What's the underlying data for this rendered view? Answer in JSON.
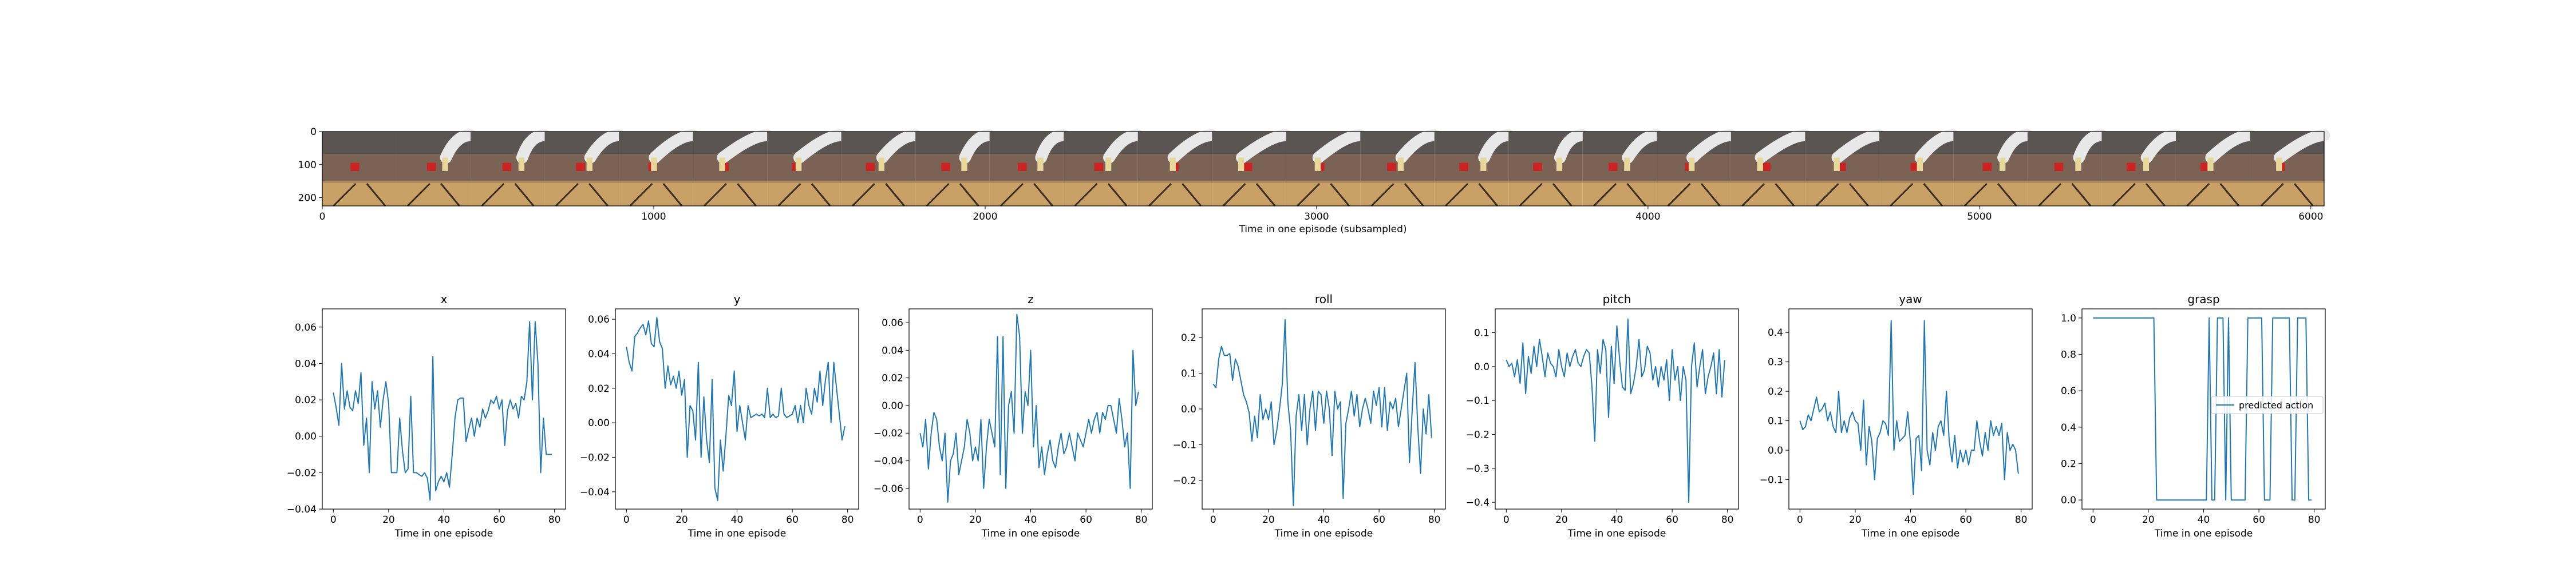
{
  "filmstrip": {
    "xlabel": "Time in one episode (subsampled)",
    "x_ticks": [
      "0",
      "1000",
      "2000",
      "3000",
      "4000",
      "5000",
      "6000"
    ],
    "y_ticks": [
      "0",
      "100",
      "200"
    ],
    "frame_count": 27,
    "colors": {
      "wall": "#5a5452",
      "table": "#7a6354",
      "table_edge": "#b08a5c",
      "floor": "#c9a066",
      "robot": "#e8e8e8",
      "object": "#cc2222",
      "gripper": "#e6d89a"
    }
  },
  "panels": {
    "xlabel": "Time in one episode",
    "line_color": "#1f77b4",
    "legend_label": "predicted action"
  },
  "chart_data": [
    {
      "type": "line",
      "title": "x",
      "xlabel": "Time in one episode",
      "ylabel": "",
      "xlim": [
        -4,
        84
      ],
      "ylim": [
        -0.04,
        0.07
      ],
      "x_ticks": [
        0,
        20,
        40,
        60,
        80
      ],
      "y_ticks": [
        -0.04,
        -0.02,
        0.0,
        0.02,
        0.04,
        0.06
      ],
      "tick_format": 2,
      "values": [
        0.024,
        0.016,
        0.006,
        0.04,
        0.015,
        0.025,
        0.016,
        0.014,
        0.025,
        0.018,
        0.035,
        -0.005,
        0.01,
        -0.02,
        0.03,
        0.015,
        0.025,
        0.005,
        0.02,
        0.03,
        0.018,
        -0.02,
        -0.02,
        -0.02,
        0.01,
        -0.008,
        -0.02,
        -0.018,
        0.022,
        -0.02,
        -0.02,
        -0.021,
        -0.022,
        -0.02,
        -0.023,
        -0.035,
        0.044,
        -0.03,
        -0.025,
        -0.022,
        -0.025,
        -0.02,
        -0.028,
        -0.01,
        0.01,
        0.02,
        0.021,
        0.021,
        -0.003,
        0.004,
        0.01,
        0.0,
        0.01,
        0.005,
        0.015,
        0.01,
        0.014,
        0.02,
        0.018,
        0.022,
        0.015,
        0.02,
        -0.005,
        0.014,
        0.02,
        0.015,
        0.018,
        0.01,
        0.022,
        0.02,
        0.03,
        0.063,
        0.02,
        0.063,
        0.04,
        -0.02,
        0.01,
        -0.01,
        -0.01,
        -0.01
      ]
    },
    {
      "type": "line",
      "title": "y",
      "xlabel": "Time in one episode",
      "ylabel": "",
      "xlim": [
        -4,
        84
      ],
      "ylim": [
        -0.05,
        0.066
      ],
      "x_ticks": [
        0,
        20,
        40,
        60,
        80
      ],
      "y_ticks": [
        -0.04,
        -0.02,
        0.0,
        0.02,
        0.04,
        0.06
      ],
      "tick_format": 2,
      "values": [
        0.044,
        0.035,
        0.03,
        0.05,
        0.052,
        0.055,
        0.057,
        0.051,
        0.059,
        0.046,
        0.044,
        0.061,
        0.047,
        0.043,
        0.02,
        0.033,
        0.022,
        0.027,
        0.02,
        0.03,
        0.016,
        0.025,
        -0.02,
        0.01,
        0.007,
        -0.01,
        0.035,
        -0.02,
        0.015,
        -0.01,
        -0.023,
        0.025,
        -0.038,
        -0.045,
        -0.01,
        -0.028,
        -0.007,
        0.016,
        0.01,
        0.03,
        -0.005,
        0.01,
        0.0,
        -0.01,
        0.01,
        0.003,
        0.004,
        0.005,
        0.004,
        0.005,
        0.003,
        0.02,
        0.003,
        0.005,
        0.003,
        0.004,
        0.02,
        0.005,
        0.003,
        0.004,
        0.005,
        0.01,
        0.0,
        0.01,
        0.0,
        0.02,
        0.01,
        0.005,
        0.02,
        0.012,
        0.03,
        0.01,
        0.025,
        0.035,
        0.0,
        0.035,
        0.02,
        0.005,
        -0.01,
        -0.002
      ]
    },
    {
      "type": "line",
      "title": "z",
      "xlabel": "Time in one episode",
      "ylabel": "",
      "xlim": [
        -4,
        84
      ],
      "ylim": [
        -0.075,
        0.07
      ],
      "x_ticks": [
        0,
        20,
        40,
        60,
        80
      ],
      "y_ticks": [
        -0.06,
        -0.04,
        -0.02,
        0.0,
        0.02,
        0.04,
        0.06
      ],
      "tick_format": 2,
      "values": [
        -0.02,
        -0.03,
        -0.01,
        -0.046,
        -0.02,
        -0.005,
        -0.01,
        -0.03,
        -0.04,
        -0.02,
        -0.07,
        -0.04,
        -0.035,
        -0.02,
        -0.05,
        -0.04,
        -0.03,
        -0.01,
        -0.02,
        -0.04,
        -0.03,
        -0.04,
        -0.01,
        -0.06,
        -0.03,
        -0.01,
        -0.02,
        -0.03,
        0.05,
        -0.05,
        0.05,
        -0.06,
        0.0,
        0.01,
        -0.02,
        0.066,
        0.05,
        -0.02,
        0.01,
        0.0,
        0.04,
        -0.03,
        0.0,
        -0.045,
        -0.03,
        -0.05,
        -0.035,
        -0.025,
        -0.04,
        -0.045,
        -0.03,
        -0.02,
        -0.035,
        -0.03,
        -0.02,
        -0.03,
        -0.04,
        -0.02,
        -0.025,
        -0.03,
        -0.02,
        -0.01,
        -0.02,
        -0.01,
        -0.005,
        -0.02,
        -0.005,
        -0.01,
        0.0,
        0.0,
        -0.01,
        -0.02,
        0.005,
        -0.01,
        -0.03,
        -0.02,
        -0.06,
        0.04,
        0.0,
        0.01
      ]
    },
    {
      "type": "line",
      "title": "roll",
      "xlabel": "Time in one episode",
      "ylabel": "",
      "xlim": [
        -4,
        84
      ],
      "ylim": [
        -0.28,
        0.28
      ],
      "x_ticks": [
        0,
        20,
        40,
        60,
        80
      ],
      "y_ticks": [
        -0.2,
        -0.1,
        0.0,
        0.1,
        0.2
      ],
      "tick_format": 1,
      "values": [
        0.07,
        0.06,
        0.14,
        0.175,
        0.15,
        0.15,
        0.155,
        0.08,
        0.14,
        0.12,
        0.08,
        0.04,
        0.02,
        -0.01,
        -0.09,
        -0.02,
        -0.08,
        0.04,
        -0.03,
        0.0,
        -0.03,
        0.02,
        -0.1,
        -0.06,
        0.0,
        0.07,
        0.25,
        0.02,
        -0.06,
        -0.27,
        -0.02,
        0.04,
        -0.06,
        0.04,
        -0.1,
        0.0,
        0.05,
        -0.06,
        0.05,
        0.04,
        -0.04,
        0.05,
        0.0,
        -0.13,
        0.05,
        0.0,
        0.02,
        -0.25,
        -0.04,
        0.0,
        0.05,
        -0.02,
        0.04,
        -0.05,
        0.0,
        0.03,
        0.0,
        -0.04,
        0.05,
        0.01,
        0.06,
        -0.05,
        0.06,
        -0.06,
        0.02,
        0.0,
        0.03,
        -0.05,
        0.0,
        0.05,
        0.1,
        -0.15,
        0.0,
        0.13,
        -0.05,
        -0.18,
        0.0,
        -0.07,
        0.04,
        -0.08
      ]
    },
    {
      "type": "line",
      "title": "pitch",
      "xlabel": "Time in one episode",
      "ylabel": "",
      "xlim": [
        -4,
        84
      ],
      "ylim": [
        -0.42,
        0.17
      ],
      "x_ticks": [
        0,
        20,
        40,
        60,
        80
      ],
      "y_ticks": [
        -0.4,
        -0.3,
        -0.2,
        -0.1,
        0.0,
        0.1
      ],
      "tick_format": 1,
      "values": [
        0.02,
        0.0,
        0.01,
        -0.03,
        0.02,
        -0.05,
        0.07,
        -0.08,
        0.03,
        -0.02,
        0.06,
        0.0,
        0.08,
        0.03,
        -0.03,
        0.04,
        0.01,
        0.0,
        -0.03,
        0.05,
        0.0,
        -0.03,
        0.04,
        0.0,
        0.03,
        0.05,
        0.01,
        0.0,
        0.03,
        0.05,
        0.04,
        -0.06,
        -0.22,
        0.05,
        -0.02,
        0.08,
        0.05,
        -0.15,
        0.06,
        -0.05,
        0.12,
        0.02,
        -0.06,
        -0.07,
        0.14,
        -0.08,
        -0.05,
        0.0,
        0.08,
        -0.03,
        -0.01,
        0.06,
        0.04,
        -0.04,
        0.0,
        -0.06,
        0.0,
        -0.04,
        0.02,
        -0.1,
        0.05,
        -0.04,
        0.0,
        -0.1,
        0.0,
        -0.04,
        -0.4,
        0.0,
        0.07,
        -0.06,
        0.0,
        0.05,
        -0.08,
        -0.03,
        0.0,
        0.04,
        -0.08,
        0.05,
        -0.09,
        0.02
      ]
    },
    {
      "type": "line",
      "title": "yaw",
      "xlabel": "Time in one episode",
      "ylabel": "",
      "xlim": [
        -4,
        84
      ],
      "ylim": [
        -0.2,
        0.48
      ],
      "x_ticks": [
        0,
        20,
        40,
        60,
        80
      ],
      "y_ticks": [
        -0.1,
        0.0,
        0.1,
        0.2,
        0.3,
        0.4
      ],
      "tick_format": 1,
      "values": [
        0.1,
        0.07,
        0.08,
        0.12,
        0.1,
        0.14,
        0.18,
        0.13,
        0.14,
        0.16,
        0.1,
        0.13,
        0.08,
        0.06,
        0.2,
        0.06,
        0.1,
        0.06,
        0.11,
        0.13,
        0.1,
        0.09,
        0.0,
        0.17,
        -0.05,
        0.08,
        0.03,
        -0.1,
        0.04,
        0.06,
        0.1,
        0.09,
        0.05,
        0.44,
        0.0,
        0.1,
        0.03,
        0.04,
        0.05,
        0.13,
        0.02,
        -0.15,
        0.04,
        0.05,
        -0.07,
        0.44,
        0.0,
        -0.05,
        0.06,
        0.0,
        0.08,
        0.1,
        0.05,
        0.2,
        0.03,
        -0.04,
        0.05,
        -0.06,
        0.0,
        -0.04,
        0.0,
        -0.05,
        0.0,
        0.0,
        0.1,
        0.03,
        -0.02,
        0.06,
        0.0,
        0.1,
        0.05,
        0.08,
        0.05,
        0.09,
        -0.1,
        0.06,
        0.0,
        0.02,
        0.0,
        -0.08
      ]
    },
    {
      "type": "line",
      "title": "grasp",
      "xlabel": "Time in one episode",
      "ylabel": "",
      "xlim": [
        -4,
        84
      ],
      "ylim": [
        -0.05,
        1.05
      ],
      "x_ticks": [
        0,
        20,
        40,
        60,
        80
      ],
      "y_ticks": [
        0.0,
        0.2,
        0.4,
        0.6,
        0.8,
        1.0
      ],
      "tick_format": 1,
      "legend": {
        "label": "predicted action",
        "position": "center-right"
      },
      "values": [
        1,
        1,
        1,
        1,
        1,
        1,
        1,
        1,
        1,
        1,
        1,
        1,
        1,
        1,
        1,
        1,
        1,
        1,
        1,
        1,
        1,
        1,
        1,
        0,
        0,
        0,
        0,
        0,
        0,
        0,
        0,
        0,
        0,
        0,
        0,
        0,
        0,
        0,
        0,
        0,
        0,
        0,
        1,
        0,
        0,
        1,
        1,
        1,
        0,
        1,
        0,
        0,
        0,
        0,
        0,
        0,
        1,
        1,
        1,
        1,
        1,
        1,
        0,
        0,
        0,
        1,
        1,
        1,
        1,
        1,
        1,
        1,
        0,
        0,
        1,
        1,
        1,
        1,
        0,
        0
      ]
    }
  ]
}
